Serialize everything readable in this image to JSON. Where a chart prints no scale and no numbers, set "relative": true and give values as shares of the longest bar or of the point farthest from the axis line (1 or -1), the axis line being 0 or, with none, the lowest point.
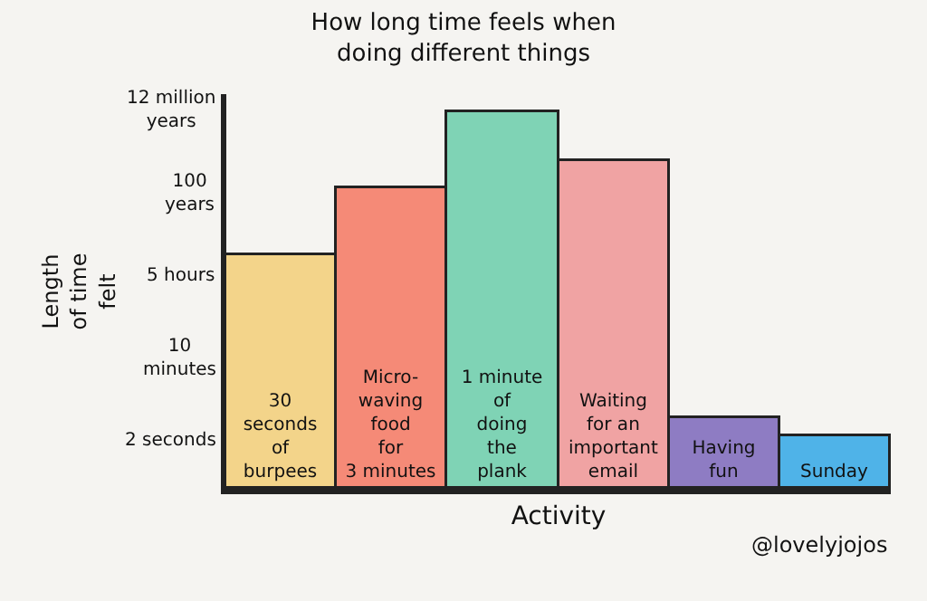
{
  "chart_data": {
    "type": "bar",
    "title": "How long time feels when\ndoing different things",
    "xlabel": "Activity",
    "ylabel": "Length\nof time\nfelt",
    "categories": [
      "30\nseconds\nof\nburpees",
      "Micro-\nwaving\nfood\nfor\n3 minutes",
      "1 minute\nof\ndoing\nthe\nplank",
      "Waiting\nfor an\nimportant\nemail",
      "Having\nfun",
      "Sunday"
    ],
    "values": [
      0.62,
      0.8,
      1.0,
      0.87,
      0.19,
      0.14
    ],
    "colors": [
      "#f3d48a",
      "#f58a77",
      "#7fd3b5",
      "#f0a3a3",
      "#8e7cc3",
      "#4fb3e8"
    ],
    "relative": true,
    "grid": false,
    "legend": false,
    "annotations": [
      "2 seconds",
      "10\nminutes",
      "5 hours",
      "100\nyears",
      "12 million\nyears",
      "@lovelyjojos"
    ]
  }
}
